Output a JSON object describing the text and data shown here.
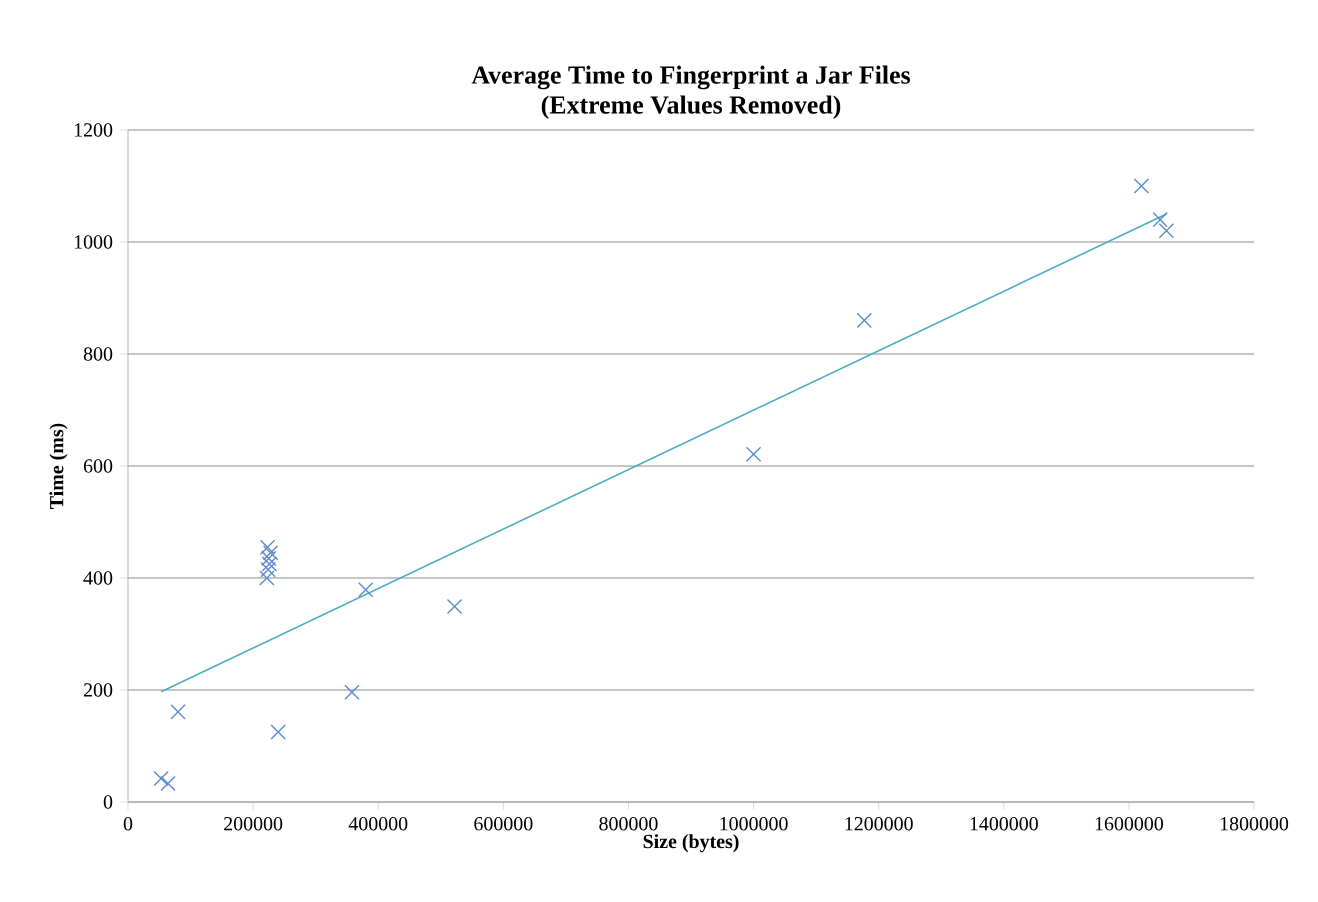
{
  "chart_data": {
    "type": "scatter",
    "title": "Average Time to Fingerprint a Jar Files\n(Extreme Values Removed)",
    "xlabel": "Size (bytes)",
    "ylabel": "Time (ms)",
    "xlim": [
      0,
      1800000
    ],
    "xticks": [
      0,
      200000,
      400000,
      600000,
      800000,
      1000000,
      1200000,
      1400000,
      1600000,
      1800000
    ],
    "ylim": [
      0,
      1200
    ],
    "yticks": [
      0,
      200,
      400,
      600,
      800,
      1000,
      1200
    ],
    "grid": "y",
    "marker": "cross",
    "series": [
      {
        "color": "#5b8bd0",
        "x": [
          53000,
          64000,
          80000,
          222000,
          224000,
          226000,
          225000,
          228000,
          223000,
          240000,
          358000,
          380000,
          522000,
          1000000,
          1177000,
          1620000,
          1650000,
          1660000
        ],
        "values": [
          42,
          33,
          161,
          400,
          415,
          425,
          435,
          445,
          455,
          125,
          196,
          379,
          349,
          621,
          860,
          1100,
          1040,
          1020
        ]
      },
      {
        "type": "line",
        "marker": "none",
        "color": "#4bacc6",
        "x": [
          53000,
          1660000
        ],
        "values": [
          197,
          1050
        ]
      }
    ]
  }
}
